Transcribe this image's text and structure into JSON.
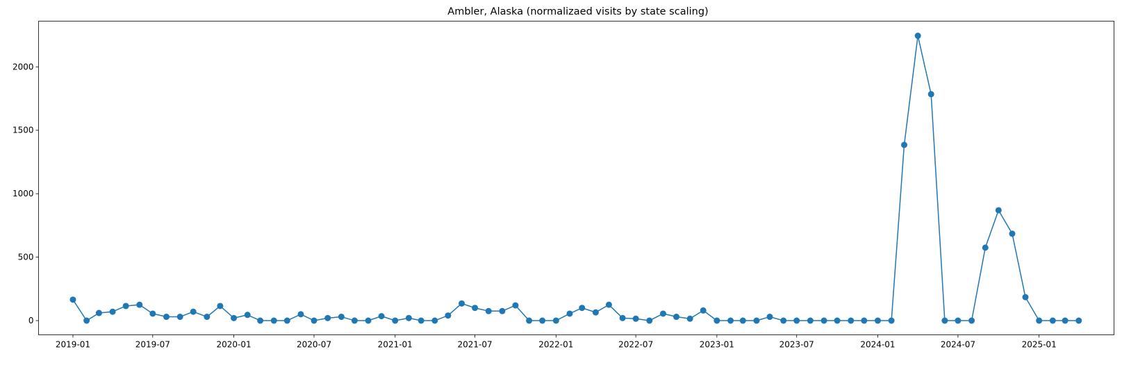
{
  "chart_data": {
    "type": "line",
    "title": "Ambler, Alaska (normalizaed visits by state scaling)",
    "xlabel": "",
    "ylabel": "",
    "color": "#1f77b4",
    "grid": false,
    "legend": "none",
    "x_range": [
      "2018-10-15",
      "2025-06-20"
    ],
    "ylim": [
      -112,
      2360
    ],
    "x_ticks": [
      "2019-01",
      "2019-07",
      "2020-01",
      "2020-07",
      "2021-01",
      "2021-07",
      "2022-01",
      "2022-07",
      "2023-01",
      "2023-07",
      "2024-01",
      "2024-07",
      "2025-01"
    ],
    "y_ticks": [
      0,
      500,
      1000,
      1500,
      2000
    ],
    "series": [
      {
        "x": [
          "2019-01-01",
          "2019-02-01",
          "2019-03-01",
          "2019-04-01",
          "2019-05-01",
          "2019-06-01",
          "2019-07-01",
          "2019-08-01",
          "2019-09-01",
          "2019-10-01",
          "2019-11-01",
          "2019-12-01",
          "2020-01-01",
          "2020-02-01",
          "2020-03-01",
          "2020-04-01",
          "2020-05-01",
          "2020-06-01",
          "2020-07-01",
          "2020-08-01",
          "2020-09-01",
          "2020-10-01",
          "2020-11-01",
          "2020-12-01",
          "2021-01-01",
          "2021-02-01",
          "2021-03-01",
          "2021-04-01",
          "2021-05-01",
          "2021-06-01",
          "2021-07-01",
          "2021-08-01",
          "2021-09-01",
          "2021-10-01",
          "2021-11-01",
          "2021-12-01",
          "2022-01-01",
          "2022-02-01",
          "2022-03-01",
          "2022-04-01",
          "2022-05-01",
          "2022-06-01",
          "2022-07-01",
          "2022-08-01",
          "2022-09-01",
          "2022-10-01",
          "2022-11-01",
          "2022-12-01",
          "2023-01-01",
          "2023-02-01",
          "2023-03-01",
          "2023-04-01",
          "2023-05-01",
          "2023-06-01",
          "2023-07-01",
          "2023-08-01",
          "2023-09-01",
          "2023-10-01",
          "2023-11-01",
          "2023-12-01",
          "2024-01-01",
          "2024-02-01",
          "2024-03-01",
          "2024-04-01",
          "2024-05-01",
          "2024-06-01",
          "2024-07-01",
          "2024-08-01",
          "2024-09-01",
          "2024-10-01",
          "2024-11-01",
          "2024-12-01",
          "2025-01-01",
          "2025-02-01",
          "2025-03-01",
          "2025-04-01"
        ],
        "y": [
          165,
          0,
          60,
          70,
          115,
          125,
          55,
          30,
          30,
          70,
          30,
          115,
          20,
          45,
          0,
          0,
          0,
          50,
          0,
          20,
          30,
          0,
          0,
          35,
          0,
          20,
          0,
          0,
          40,
          135,
          100,
          75,
          75,
          120,
          0,
          0,
          0,
          55,
          100,
          65,
          125,
          20,
          15,
          0,
          55,
          30,
          15,
          80,
          0,
          0,
          0,
          0,
          30,
          0,
          0,
          0,
          0,
          0,
          0,
          0,
          0,
          0,
          1385,
          2245,
          1785,
          0,
          0,
          0,
          575,
          870,
          685,
          185,
          0,
          0,
          0,
          0
        ]
      }
    ]
  }
}
